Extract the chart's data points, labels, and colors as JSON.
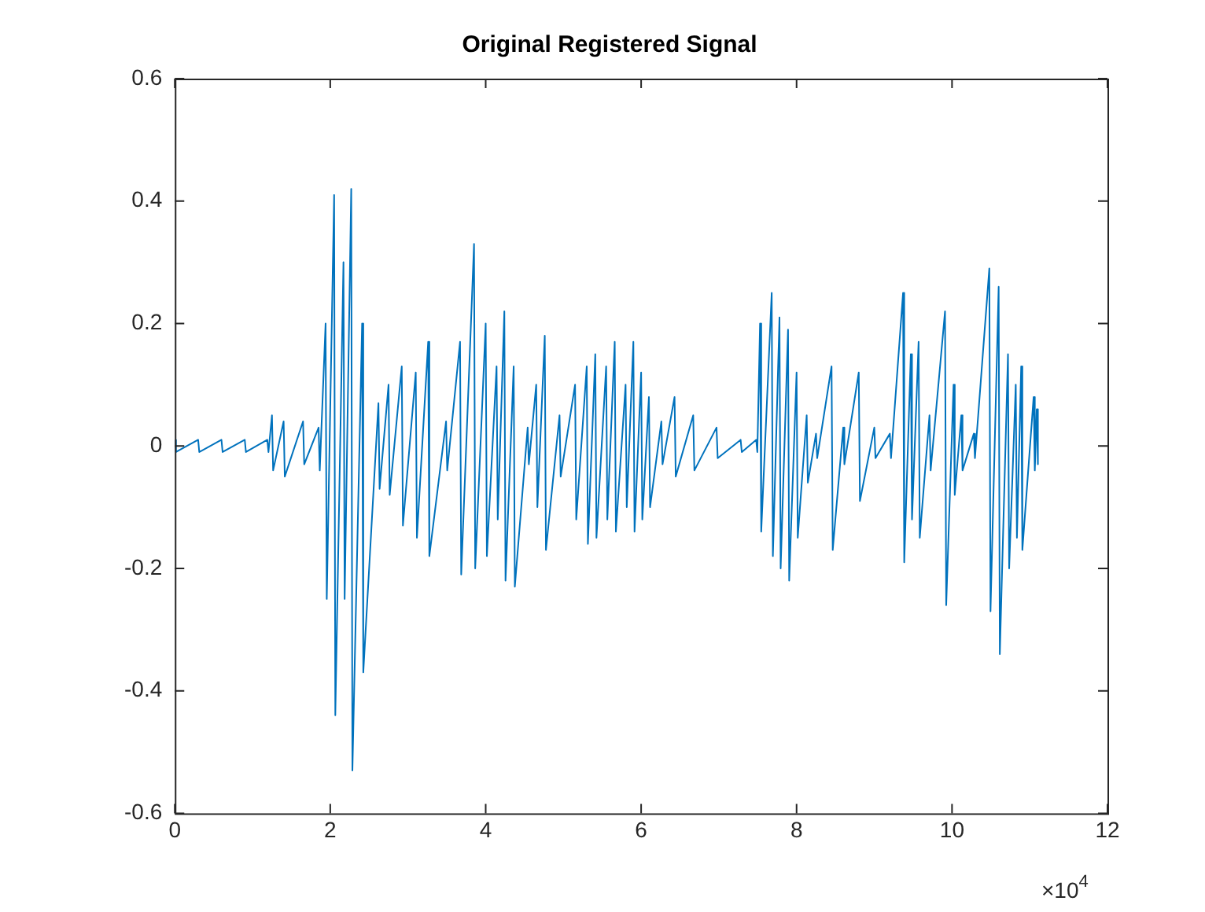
{
  "chart_data": {
    "type": "line",
    "title": "Original Registered Signal",
    "annotations": [
      "×10$^{4}$"
    ],
    "xlim": [
      0,
      12
    ],
    "xticks": [
      0,
      2,
      4,
      6,
      8,
      10,
      12
    ],
    "ylim": [
      -0.6,
      0.6
    ],
    "yticks": [
      -0.6,
      -0.4,
      -0.2,
      0,
      0.2,
      0.4,
      0.6
    ],
    "grid": false,
    "legend": false,
    "marker": "none",
    "line_style": "solid",
    "series": [
      {
        "color": "#0072bd",
        "x": [
          0,
          0.015,
          0.3,
          0.315,
          0.6,
          0.615,
          0.9,
          0.915,
          1.19,
          1.205,
          1.25,
          1.265,
          1.4,
          1.415,
          1.65,
          1.665,
          1.85,
          1.865,
          1.94,
          1.955,
          2.05,
          2.065,
          2.17,
          2.185,
          2.27,
          2.285,
          2.41,
          2.425,
          2.62,
          2.635,
          2.75,
          2.765,
          2.92,
          2.935,
          3.1,
          3.115,
          3.26,
          3.275,
          3.49,
          3.505,
          3.67,
          3.685,
          3.85,
          3.865,
          4,
          4.015,
          4.14,
          4.155,
          4.24,
          4.255,
          4.36,
          4.375,
          4.54,
          4.555,
          4.65,
          4.665,
          4.76,
          4.775,
          4.95,
          4.965,
          5.15,
          5.165,
          5.3,
          5.315,
          5.41,
          5.425,
          5.55,
          5.565,
          5.66,
          5.675,
          5.8,
          5.815,
          5.9,
          5.915,
          6,
          6.015,
          6.1,
          6.115,
          6.26,
          6.275,
          6.43,
          6.445,
          6.67,
          6.685,
          6.97,
          6.985,
          7.28,
          7.295,
          7.48,
          7.495,
          7.53,
          7.545,
          7.68,
          7.695,
          7.78,
          7.795,
          7.89,
          7.905,
          8,
          8.015,
          8.13,
          8.145,
          8.25,
          8.265,
          8.45,
          8.465,
          8.6,
          8.615,
          8.8,
          8.815,
          9,
          9.015,
          9.2,
          9.215,
          9.37,
          9.385,
          9.47,
          9.485,
          9.57,
          9.585,
          9.71,
          9.725,
          9.91,
          9.925,
          10.02,
          10.035,
          10.12,
          10.135,
          10.28,
          10.295,
          10.48,
          10.495,
          10.6,
          10.615,
          10.72,
          10.735,
          10.82,
          10.835,
          10.89,
          10.905,
          11.05,
          11.065,
          11.09,
          11.105
        ],
        "values": [
          0.01,
          -0.01,
          0.01,
          -0.01,
          0.01,
          -0.01,
          0.01,
          -0.01,
          0.01,
          -0.01,
          0.05,
          -0.04,
          0.04,
          -0.05,
          0.04,
          -0.03,
          0.03,
          -0.04,
          0.2,
          -0.25,
          0.41,
          -0.44,
          0.3,
          -0.25,
          0.42,
          -0.53,
          0.2,
          -0.37,
          0.07,
          -0.07,
          0.1,
          -0.08,
          0.13,
          -0.13,
          0.12,
          -0.15,
          0.17,
          -0.18,
          0.04,
          -0.04,
          0.17,
          -0.21,
          0.33,
          -0.2,
          0.2,
          -0.18,
          0.13,
          -0.12,
          0.22,
          -0.22,
          0.13,
          -0.23,
          0.03,
          -0.03,
          0.1,
          -0.1,
          0.18,
          -0.17,
          0.05,
          -0.05,
          0.1,
          -0.12,
          0.13,
          -0.16,
          0.15,
          -0.15,
          0.13,
          -0.12,
          0.17,
          -0.14,
          0.1,
          -0.1,
          0.17,
          -0.14,
          0.12,
          -0.12,
          0.08,
          -0.1,
          0.04,
          -0.03,
          0.08,
          -0.05,
          0.05,
          -0.04,
          0.03,
          -0.02,
          0.01,
          -0.01,
          0.01,
          -0.01,
          0.2,
          -0.14,
          0.25,
          -0.18,
          0.21,
          -0.2,
          0.19,
          -0.22,
          0.12,
          -0.15,
          0.05,
          -0.06,
          0.02,
          -0.02,
          0.13,
          -0.17,
          0.03,
          -0.03,
          0.12,
          -0.09,
          0.03,
          -0.02,
          0.02,
          -0.02,
          0.25,
          -0.19,
          0.15,
          -0.12,
          0.17,
          -0.15,
          0.05,
          -0.04,
          0.22,
          -0.26,
          0.1,
          -0.08,
          0.05,
          -0.04,
          0.02,
          -0.02,
          0.29,
          -0.27,
          0.26,
          -0.34,
          0.15,
          -0.2,
          0.1,
          -0.15,
          0.13,
          -0.17,
          0.08,
          -0.04,
          0.06,
          -0.03
        ]
      }
    ]
  }
}
